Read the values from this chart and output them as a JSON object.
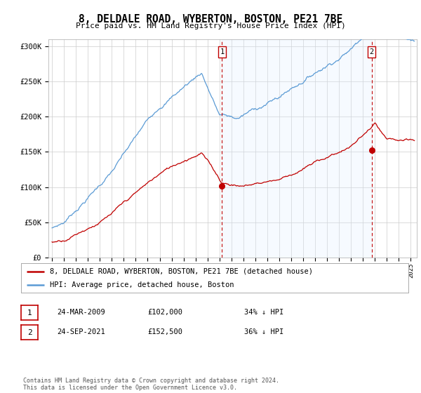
{
  "title": "8, DELDALE ROAD, WYBERTON, BOSTON, PE21 7BE",
  "subtitle": "Price paid vs. HM Land Registry's House Price Index (HPI)",
  "ylabel_ticks": [
    "£0",
    "£50K",
    "£100K",
    "£150K",
    "£200K",
    "£250K",
    "£300K"
  ],
  "ytick_values": [
    0,
    50000,
    100000,
    150000,
    200000,
    250000,
    300000
  ],
  "ylim": [
    0,
    310000
  ],
  "xlim_start": 1994.7,
  "xlim_end": 2025.5,
  "sale1_date": 2009.22,
  "sale1_price": 102000,
  "sale1_label": "1",
  "sale2_date": 2021.73,
  "sale2_price": 152500,
  "sale2_label": "2",
  "legend_line1": "8, DELDALE ROAD, WYBERTON, BOSTON, PE21 7BE (detached house)",
  "legend_line2": "HPI: Average price, detached house, Boston",
  "table_row1": [
    "1",
    "24-MAR-2009",
    "£102,000",
    "34% ↓ HPI"
  ],
  "table_row2": [
    "2",
    "24-SEP-2021",
    "£152,500",
    "36% ↓ HPI"
  ],
  "footnote": "Contains HM Land Registry data © Crown copyright and database right 2024.\nThis data is licensed under the Open Government Licence v3.0.",
  "hpi_color": "#5b9bd5",
  "price_color": "#c00000",
  "vline_color": "#c00000",
  "shade_color": "#ddeeff",
  "background_color": "#ffffff",
  "grid_color": "#cccccc"
}
